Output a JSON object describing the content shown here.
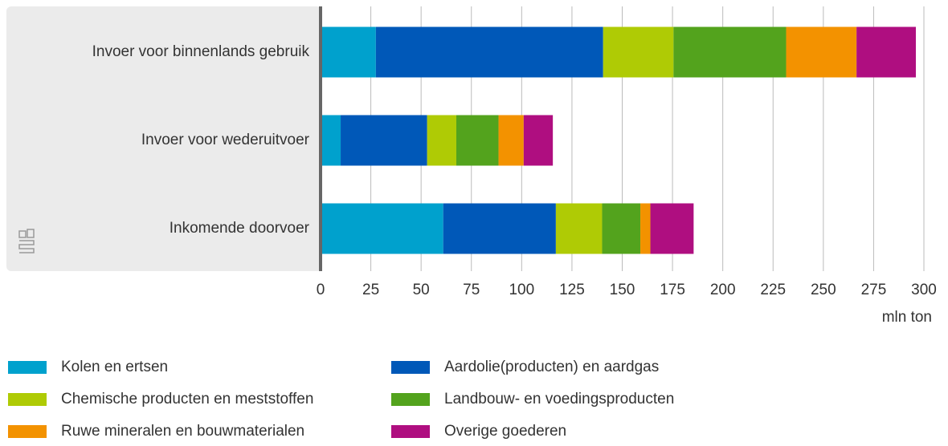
{
  "chart_data": {
    "type": "bar",
    "orientation": "horizontal",
    "stacked": true,
    "categories": [
      "Invoer voor binnenlands gebruik",
      "Invoer voor wederuitvoer",
      "Inkomende doorvoer"
    ],
    "series": [
      {
        "name": "Kolen en ertsen",
        "color": "#00a1cd",
        "values": [
          27.5,
          10,
          61
        ]
      },
      {
        "name": "Aardolie(producten) en aardgas",
        "color": "#0058b8",
        "values": [
          113,
          43,
          56
        ]
      },
      {
        "name": "Chemische producten en meststoffen",
        "color": "#afcb05",
        "values": [
          35,
          14.5,
          23
        ]
      },
      {
        "name": "Landbouw- en voedingsproducten",
        "color": "#53a31d",
        "values": [
          56,
          21,
          19
        ]
      },
      {
        "name": "Ruwe mineralen en bouwmaterialen",
        "color": "#f39200",
        "values": [
          35,
          12.5,
          5
        ]
      },
      {
        "name": "Overige goederen",
        "color": "#af0e80",
        "values": [
          29.5,
          14.5,
          21.5
        ]
      }
    ],
    "xlabel": "mln ton",
    "xlim": [
      0,
      300
    ],
    "xticks": [
      0,
      25,
      50,
      75,
      100,
      125,
      150,
      175,
      200,
      225,
      250,
      275,
      300
    ],
    "grid": true
  }
}
